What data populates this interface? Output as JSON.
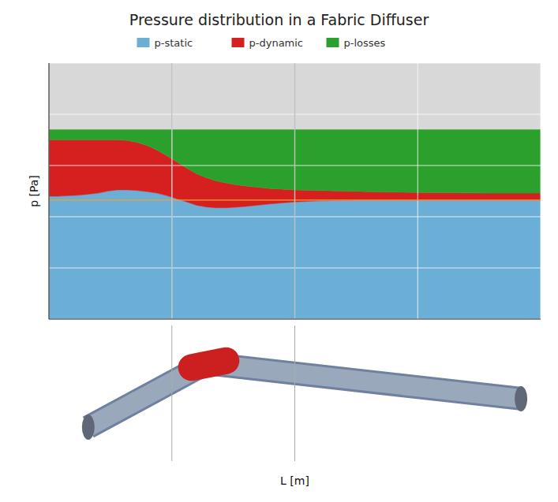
{
  "chart_data": {
    "type": "area",
    "title": "Pressure distribution in a Fabric Diffuser",
    "x_label": "L [m]",
    "y_label": "p [Pa]",
    "x": [
      0,
      0.2,
      0.4,
      0.6,
      0.8,
      1.0,
      1.2,
      1.4,
      1.6,
      1.8,
      2.0,
      2.2,
      2.4,
      2.6,
      2.8,
      3.0,
      3.2,
      3.4,
      3.6,
      3.8,
      4.0,
      4.5,
      5.0,
      5.5,
      6.0,
      6.5,
      7.0,
      7.5,
      8.0,
      8.5,
      9.0,
      9.5,
      10.0
    ],
    "series": [
      {
        "name": "p-static",
        "color": "#6baed6",
        "values": [
          4.8,
          4.8,
          4.82,
          4.84,
          4.88,
          4.92,
          5.0,
          5.05,
          5.05,
          5.02,
          4.98,
          4.92,
          4.82,
          4.7,
          4.58,
          4.45,
          4.38,
          4.35,
          4.35,
          4.37,
          4.4,
          4.5,
          4.58,
          4.62,
          4.64,
          4.65,
          4.65,
          4.65,
          4.65,
          4.65,
          4.65,
          4.65,
          4.65
        ]
      },
      {
        "name": "p-dynamic",
        "color": "#d62020",
        "values": [
          7.0,
          7.0,
          7.0,
          7.0,
          7.0,
          7.0,
          7.0,
          7.0,
          6.98,
          6.9,
          6.78,
          6.6,
          6.38,
          6.15,
          5.9,
          5.68,
          5.52,
          5.4,
          5.32,
          5.25,
          5.2,
          5.1,
          5.05,
          5.02,
          5.0,
          4.98,
          4.96,
          4.95,
          4.94,
          4.93,
          4.92,
          4.92,
          4.92
        ]
      },
      {
        "name": "p-losses",
        "color": "#2ca02c",
        "values": [
          7.4,
          7.4,
          7.4,
          7.4,
          7.4,
          7.4,
          7.4,
          7.4,
          7.4,
          7.4,
          7.4,
          7.4,
          7.4,
          7.4,
          7.4,
          7.4,
          7.4,
          7.4,
          7.4,
          7.4,
          7.4,
          7.4,
          7.4,
          7.4,
          7.4,
          7.4,
          7.4,
          7.4,
          7.4,
          7.4,
          7.4,
          7.4,
          7.4
        ]
      }
    ],
    "reference_lines": [
      {
        "y": 4.65,
        "color": "#f0a030"
      }
    ],
    "vlines": [
      2.5,
      5.0
    ],
    "xlim": [
      0,
      10
    ],
    "ylim": [
      0,
      10
    ],
    "xticks": [
      0,
      2.5,
      5.0,
      7.5,
      10.0
    ],
    "yticks": [
      0,
      2,
      4,
      6,
      8,
      10
    ],
    "grid": true,
    "tick_labels": false,
    "legend": "top"
  }
}
